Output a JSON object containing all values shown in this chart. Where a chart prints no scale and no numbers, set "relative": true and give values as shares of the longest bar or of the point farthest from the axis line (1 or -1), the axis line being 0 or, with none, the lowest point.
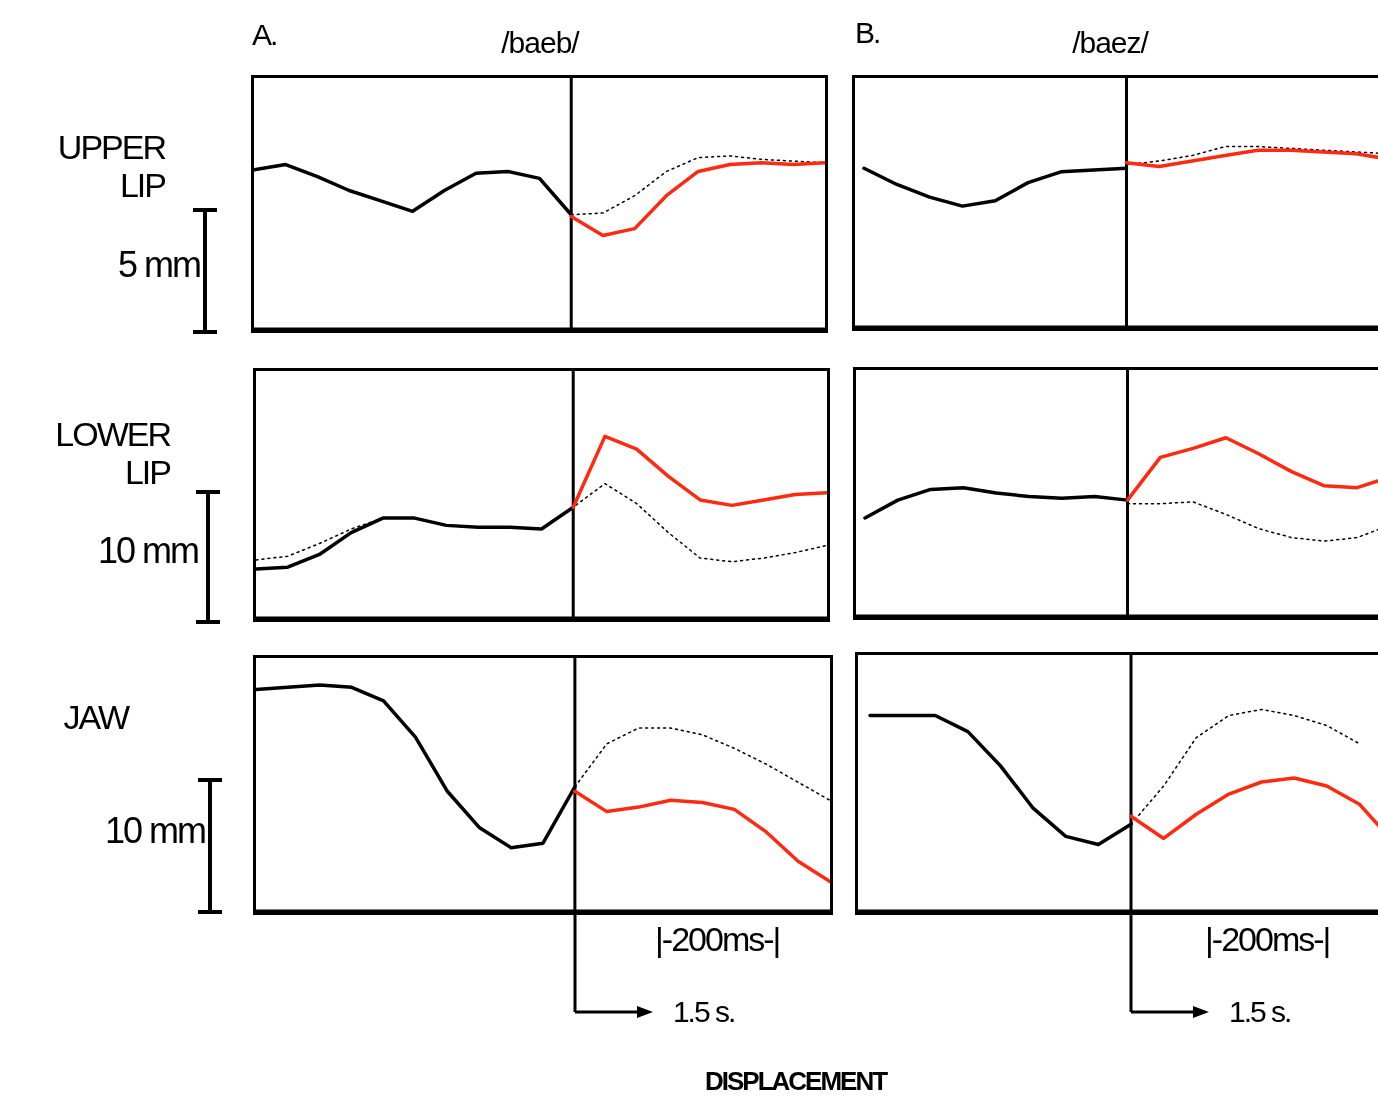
{
  "chart_data": [
    {
      "type": "line",
      "title": "/baeb/",
      "ylabel": "UPPER LIP",
      "annotations": [
        "A.",
        "5 mm"
      ],
      "relative": true,
      "categories": [
        null,
        null,
        null,
        null,
        null,
        null,
        null,
        null,
        null,
        null,
        null,
        null,
        null,
        null,
        null,
        null,
        null,
        null,
        null
      ],
      "ref_lines": [
        {
          "axis": "x"
        }
      ],
      "series": [
        {
          "color": "#000000",
          "line_style": "solid",
          "values": [
            0.92,
            0.95,
            0.88,
            0.8,
            0.74,
            0.68,
            0.8,
            0.9,
            0.91,
            0.87,
            0.66,
            null,
            null,
            null,
            null,
            null,
            null,
            null,
            null
          ]
        },
        {
          "color": "#000000",
          "line_style": "dotted",
          "values": [
            null,
            null,
            null,
            null,
            null,
            null,
            null,
            null,
            null,
            null,
            0.66,
            0.67,
            0.77,
            0.91,
            0.99,
            1.0,
            0.98,
            0.97,
            0.96
          ]
        },
        {
          "color": "#ff2a10",
          "line_style": "solid",
          "values": [
            null,
            null,
            null,
            null,
            null,
            null,
            null,
            null,
            null,
            null,
            0.65,
            0.54,
            0.58,
            0.77,
            0.91,
            0.95,
            0.96,
            0.95,
            0.96
          ]
        }
      ]
    },
    {
      "type": "line",
      "title": "/baez/",
      "annotations": [
        "B."
      ],
      "relative": true,
      "categories": [
        null,
        null,
        null,
        null,
        null,
        null,
        null,
        null,
        null,
        null,
        null,
        null,
        null,
        null,
        null,
        null,
        null
      ],
      "ref_lines": [
        {
          "axis": "x"
        }
      ],
      "series": [
        {
          "color": "#000000",
          "line_style": "solid",
          "values": [
            0.88,
            0.79,
            0.72,
            0.67,
            0.7,
            0.8,
            0.86,
            0.87,
            0.88,
            null,
            null,
            null,
            null,
            null,
            null,
            null,
            null
          ]
        },
        {
          "color": "#000000",
          "line_style": "dotted",
          "values": [
            null,
            null,
            null,
            null,
            null,
            null,
            null,
            null,
            0.9,
            0.92,
            0.95,
            1.0,
            1.0,
            0.99,
            0.98,
            0.97,
            0.96
          ]
        },
        {
          "color": "#ff2a10",
          "line_style": "solid",
          "values": [
            null,
            null,
            null,
            null,
            null,
            null,
            null,
            null,
            0.91,
            0.89,
            0.92,
            0.95,
            0.98,
            0.98,
            0.97,
            0.96,
            0.93
          ]
        }
      ]
    },
    {
      "type": "line",
      "ylabel": "LOWER LIP",
      "annotations": [
        "10 mm"
      ],
      "relative": true,
      "categories": [
        null,
        null,
        null,
        null,
        null,
        null,
        null,
        null,
        null,
        null,
        null,
        null,
        null,
        null,
        null,
        null,
        null,
        null,
        null
      ],
      "ref_lines": [
        {
          "axis": "x"
        }
      ],
      "series": [
        {
          "color": "#000000",
          "line_style": "solid",
          "values": [
            0.27,
            0.28,
            0.35,
            0.47,
            0.55,
            0.55,
            0.51,
            0.5,
            0.5,
            0.49,
            0.61,
            null,
            null,
            null,
            null,
            null,
            null,
            null,
            null
          ]
        },
        {
          "color": "#000000",
          "line_style": "dotted",
          "values": [
            0.32,
            0.34,
            0.41,
            0.49,
            0.55,
            0.55,
            0.51,
            0.5,
            0.5,
            0.49,
            0.61,
            0.74,
            0.63,
            0.47,
            0.33,
            0.31,
            0.33,
            0.36,
            0.4
          ]
        },
        {
          "color": "#ff2a10",
          "line_style": "solid",
          "values": [
            null,
            null,
            null,
            null,
            null,
            null,
            null,
            null,
            null,
            null,
            0.61,
            1.0,
            0.93,
            0.78,
            0.65,
            0.62,
            0.65,
            0.68,
            0.69
          ]
        }
      ]
    },
    {
      "type": "line",
      "relative": true,
      "categories": [
        null,
        null,
        null,
        null,
        null,
        null,
        null,
        null,
        null,
        null,
        null,
        null,
        null,
        null,
        null,
        null,
        null
      ],
      "ref_lines": [
        {
          "axis": "x"
        }
      ],
      "series": [
        {
          "color": "#000000",
          "line_style": "solid",
          "values": [
            0.55,
            0.65,
            0.71,
            0.72,
            0.69,
            0.67,
            0.66,
            0.67,
            0.65,
            null,
            null,
            null,
            null,
            null,
            null,
            null,
            null
          ]
        },
        {
          "color": "#000000",
          "line_style": "dotted",
          "values": [
            null,
            null,
            null,
            null,
            null,
            null,
            null,
            null,
            0.63,
            0.63,
            0.64,
            0.57,
            0.49,
            0.44,
            0.42,
            0.44,
            0.51
          ]
        },
        {
          "color": "#ff2a10",
          "line_style": "solid",
          "values": [
            null,
            null,
            null,
            null,
            null,
            null,
            null,
            null,
            0.65,
            0.89,
            0.94,
            1.0,
            0.91,
            0.81,
            0.73,
            0.72,
            0.78
          ]
        }
      ]
    },
    {
      "type": "line",
      "ylabel": "JAW",
      "annotations": [
        "10 mm",
        "|-200ms-|",
        "DISPLACEMENT"
      ],
      "relative": true,
      "categories": [
        null,
        null,
        null,
        null,
        null,
        null,
        null,
        null,
        null,
        null,
        null,
        null,
        null,
        null,
        null,
        null,
        null,
        null,
        null
      ],
      "ref_lines": [
        {
          "axis": "x",
          "label": "1.5 s."
        }
      ],
      "series": [
        {
          "color": "#000000",
          "line_style": "solid",
          "values": [
            0.98,
            0.99,
            1.0,
            0.99,
            0.93,
            0.77,
            0.53,
            0.37,
            0.28,
            0.3,
            0.55,
            null,
            null,
            null,
            null,
            null,
            null,
            null,
            null
          ]
        },
        {
          "color": "#000000",
          "line_style": "dotted",
          "values": [
            null,
            null,
            null,
            null,
            null,
            null,
            null,
            null,
            null,
            null,
            0.55,
            0.74,
            0.81,
            0.81,
            0.78,
            0.72,
            0.65,
            0.57,
            0.49
          ]
        },
        {
          "color": "#ff2a10",
          "line_style": "solid",
          "values": [
            null,
            null,
            null,
            null,
            null,
            null,
            null,
            null,
            null,
            null,
            0.53,
            0.44,
            0.46,
            0.49,
            0.48,
            0.45,
            0.35,
            0.22,
            0.13
          ]
        }
      ]
    },
    {
      "type": "line",
      "annotations": [
        "|-200ms-|"
      ],
      "relative": true,
      "categories": [
        null,
        null,
        null,
        null,
        null,
        null,
        null,
        null,
        null,
        null,
        null,
        null,
        null,
        null,
        null,
        null,
        null
      ],
      "ref_lines": [
        {
          "axis": "x",
          "label": "1.5 s."
        }
      ],
      "series": [
        {
          "color": "#000000",
          "line_style": "solid",
          "values": [
            0.97,
            0.97,
            0.97,
            0.89,
            0.72,
            0.51,
            0.37,
            0.33,
            0.43,
            null,
            null,
            null,
            null,
            null,
            null,
            null,
            null
          ]
        },
        {
          "color": "#000000",
          "line_style": "dotted",
          "values": [
            null,
            null,
            null,
            null,
            null,
            null,
            null,
            null,
            0.43,
            0.62,
            0.86,
            0.97,
            1.0,
            0.97,
            0.92,
            0.83,
            null
          ]
        },
        {
          "color": "#ff2a10",
          "line_style": "solid",
          "values": [
            null,
            null,
            null,
            null,
            null,
            null,
            null,
            null,
            0.47,
            0.36,
            0.48,
            0.58,
            0.64,
            0.66,
            0.62,
            0.53,
            0.35
          ]
        }
      ]
    }
  ]
}
